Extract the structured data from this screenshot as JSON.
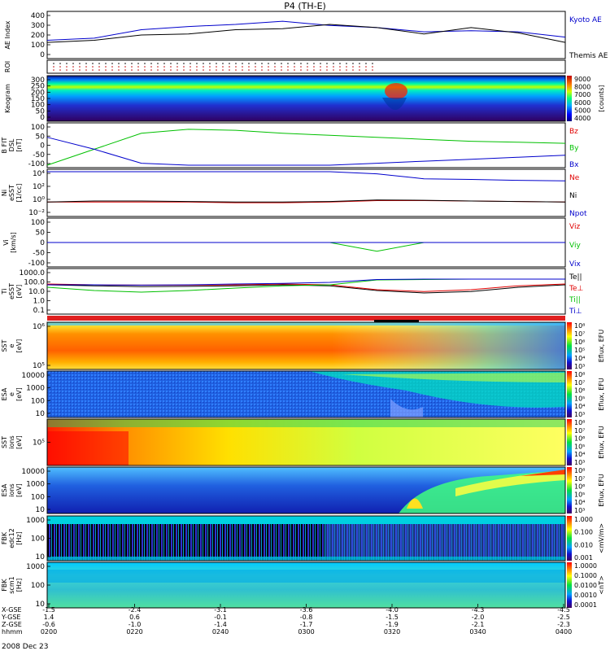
{
  "title": "P4 (TH-E)",
  "date_label": "2008 Dec 23",
  "x_axis": {
    "row_labels": [
      "X-GSE",
      "Y-GSE",
      "Z-GSE",
      "hhmm"
    ],
    "ticks": [
      {
        "x": "-1.5",
        "y": "1.4",
        "z": "-0.6",
        "t": "0200"
      },
      {
        "x": "-2.4",
        "y": "0.6",
        "z": "-1.0",
        "t": "0220"
      },
      {
        "x": "-3.1",
        "y": "-0.1",
        "z": "-1.4",
        "t": "0240"
      },
      {
        "x": "-3.6",
        "y": "-0.8",
        "z": "-1.7",
        "t": "0300"
      },
      {
        "x": "-4.0",
        "y": "-1.5",
        "z": "-1.9",
        "t": "0320"
      },
      {
        "x": "-4.3",
        "y": "-2.0",
        "z": "-2.1",
        "t": "0340"
      },
      {
        "x": "-4.5",
        "y": "-2.5",
        "z": "-2.3",
        "t": "0400"
      }
    ]
  },
  "colors": {
    "red": "#e00000",
    "green": "#00c000",
    "blue": "#0000cc",
    "black": "#000000"
  },
  "panels": [
    {
      "id": "ae",
      "ylabel": [
        "AE Index"
      ],
      "yticks": [
        "400",
        "300",
        "200",
        "100",
        "0"
      ],
      "legend": [
        {
          "text": "Kyoto AE",
          "color": "#0000cc"
        },
        {
          "text": "Themis AE",
          "color": "#000000"
        }
      ]
    },
    {
      "id": "roi",
      "ylabel": [
        "ROI"
      ],
      "yticks": [],
      "legend": []
    },
    {
      "id": "keogram",
      "ylabel": [
        "Keogram"
      ],
      "yticks": [
        "300",
        "250",
        "200",
        "150",
        "100",
        "50",
        "0"
      ],
      "colorbar": {
        "ticks": [
          "9000",
          "8000",
          "7000",
          "6000",
          "5000",
          "4000"
        ],
        "label": "[counts]"
      }
    },
    {
      "id": "bfit",
      "ylabel": [
        "B FIT",
        "DSL",
        "[nT]"
      ],
      "yticks": [
        "100",
        "50",
        "0",
        "-50",
        "-100"
      ],
      "legend": [
        {
          "text": "Bz",
          "color": "#e00000"
        },
        {
          "text": "By",
          "color": "#00c000"
        },
        {
          "text": "Bx",
          "color": "#0000cc"
        }
      ]
    },
    {
      "id": "ni",
      "ylabel": [
        "Ni",
        "eSST",
        "[1/cc]"
      ],
      "yticks": [
        "10⁴",
        "10²",
        "10⁰",
        "10⁻²"
      ],
      "legend": [
        {
          "text": "Ne",
          "color": "#e00000"
        },
        {
          "text": "Ni",
          "color": "#000000"
        },
        {
          "text": "Npot",
          "color": "#0000cc"
        }
      ]
    },
    {
      "id": "vi",
      "ylabel": [
        "Vi",
        "[km/s]"
      ],
      "yticks": [
        "100",
        "50",
        "0",
        "-50",
        "-100"
      ],
      "legend": [
        {
          "text": "Viz",
          "color": "#e00000"
        },
        {
          "text": "Viy",
          "color": "#00c000"
        },
        {
          "text": "Vix",
          "color": "#0000cc"
        }
      ]
    },
    {
      "id": "ti",
      "ylabel": [
        "Ti",
        "eSST",
        "[eV]"
      ],
      "yticks": [
        "1000.0",
        "100.0",
        "10.0",
        "1.0",
        "0.1"
      ],
      "legend": [
        {
          "text": "Te||",
          "color": "#000000"
        },
        {
          "text": "Te⊥",
          "color": "#e00000"
        },
        {
          "text": "Ti||",
          "color": "#00c000"
        },
        {
          "text": "Ti⊥",
          "color": "#0000cc"
        }
      ]
    },
    {
      "id": "sst_e",
      "ylabel": [
        "SST",
        "e",
        "[eV]"
      ],
      "yticks": [
        "10⁶",
        "10⁵"
      ],
      "colorbar": {
        "ticks": [
          "10⁸",
          "10⁷",
          "10⁶",
          "10⁵",
          "10⁴",
          "10³"
        ],
        "label": "Eflux, EFU"
      }
    },
    {
      "id": "esa_e",
      "ylabel": [
        "ESA",
        "e",
        "[eV]"
      ],
      "yticks": [
        "10000",
        "1000",
        "100",
        "10"
      ],
      "colorbar": {
        "ticks": [
          "10⁸",
          "10⁷",
          "10⁶",
          "10⁵",
          "10⁴",
          "10³"
        ],
        "label": "Eflux, EFU"
      }
    },
    {
      "id": "sst_i",
      "ylabel": [
        "SST",
        "ions",
        "[eV]"
      ],
      "yticks": [
        "10⁵"
      ],
      "colorbar": {
        "ticks": [
          "10⁸",
          "10⁷",
          "10⁶",
          "10⁵",
          "10⁴",
          "10³"
        ],
        "label": "Eflux, EFU"
      }
    },
    {
      "id": "esa_i",
      "ylabel": [
        "ESA",
        "ions",
        "[eV]"
      ],
      "yticks": [
        "10000",
        "1000",
        "100",
        "10"
      ],
      "colorbar": {
        "ticks": [
          "10⁸",
          "10⁷",
          "10⁶",
          "10⁵",
          "10⁴",
          "10³"
        ],
        "label": "Eflux, EFU"
      }
    },
    {
      "id": "fbk_e",
      "ylabel": [
        "FBK",
        "edc12",
        "[Hz]"
      ],
      "yticks": [
        "1000",
        "100",
        "10"
      ],
      "colorbar": {
        "ticks": [
          "1.000",
          "0.100",
          "0.010",
          "0.001"
        ],
        "label": "<mV/m>"
      }
    },
    {
      "id": "fbk_b",
      "ylabel": [
        "FBK",
        "scm1",
        "[Hz]"
      ],
      "yticks": [
        "1000",
        "100",
        "10"
      ],
      "colorbar": {
        "ticks": [
          "1.0000",
          "0.1000",
          "0.0100",
          "0.0010",
          "0.0001"
        ],
        "label": "<nT>"
      }
    }
  ],
  "chart_data": {
    "type": "line",
    "title": "P4 (TH-E)",
    "x_time_hhmm": [
      "0200",
      "0220",
      "0240",
      "0300",
      "0320",
      "0340",
      "0400"
    ],
    "ae_index": {
      "ylim": [
        0,
        400
      ],
      "series": [
        {
          "name": "Kyoto AE",
          "color": "#0000cc",
          "values": [
            150,
            170,
            250,
            280,
            300,
            330,
            290,
            270,
            230,
            240,
            230,
            180
          ]
        },
        {
          "name": "Themis AE",
          "color": "#000000",
          "values": [
            130,
            150,
            200,
            210,
            250,
            260,
            300,
            270,
            210,
            270,
            220,
            130
          ]
        }
      ]
    },
    "b_fit_nT": {
      "ylim": [
        -100,
        100
      ],
      "series": [
        {
          "name": "Bz",
          "color": "#e00000",
          "values": []
        },
        {
          "name": "By",
          "color": "#00c000",
          "values": [
            -100,
            -20,
            60,
            80,
            75,
            60,
            50,
            40,
            30,
            20,
            15,
            10
          ]
        },
        {
          "name": "Bx",
          "color": "#0000cc",
          "values": [
            40,
            -20,
            -90,
            -100,
            -100,
            -100,
            -100,
            -90,
            -80,
            -70,
            -60,
            -50
          ]
        }
      ]
    },
    "densities_cc": {
      "ylim_log": [
        -2,
        4
      ],
      "series": [
        {
          "name": "Ne",
          "color": "#e00000",
          "values": [
            0.5,
            0.5,
            0.5,
            0.5,
            0.4,
            0.4,
            0.5,
            0.8,
            0.8,
            0.7,
            0.6,
            0.5
          ]
        },
        {
          "name": "Ni",
          "color": "#000000",
          "values": [
            0.5,
            0.7,
            0.7,
            0.6,
            0.5,
            0.5,
            0.6,
            1.0,
            0.9,
            0.7,
            0.6,
            0.5
          ]
        },
        {
          "name": "Npot",
          "color": "#0000cc",
          "values": [
            20000,
            18000,
            15000,
            13000,
            12000,
            11000,
            10000,
            5000,
            1000,
            800,
            600,
            500
          ]
        }
      ]
    },
    "velocity_kms": {
      "ylim": [
        -100,
        100
      ],
      "series": [
        {
          "name": "Viz",
          "color": "#e00000",
          "values": [
            0,
            0,
            0,
            0,
            0,
            0,
            0,
            0,
            0,
            0,
            0,
            0
          ]
        },
        {
          "name": "Viy",
          "color": "#00c000",
          "values": [
            0,
            0,
            0,
            0,
            0,
            0,
            0,
            -40,
            0,
            0,
            0,
            0
          ]
        },
        {
          "name": "Vix",
          "color": "#0000cc",
          "values": [
            0,
            0,
            0,
            0,
            0,
            0,
            0,
            0,
            0,
            0,
            0,
            0
          ]
        }
      ]
    },
    "temperatures_eV": {
      "ylim_log": [
        -1,
        4
      ],
      "series": [
        {
          "name": "Te||",
          "color": "#000000",
          "values": [
            200,
            150,
            120,
            130,
            150,
            200,
            150,
            40,
            20,
            30,
            100,
            200
          ]
        },
        {
          "name": "Te⊥",
          "color": "#e00000",
          "values": [
            250,
            200,
            180,
            180,
            200,
            250,
            200,
            50,
            30,
            50,
            150,
            250
          ]
        },
        {
          "name": "Ti||",
          "color": "#00c000",
          "values": [
            100,
            40,
            25,
            40,
            80,
            150,
            200,
            800,
            900,
            1000,
            1000,
            1000
          ]
        },
        {
          "name": "Ti⊥",
          "color": "#0000cc",
          "values": [
            200,
            200,
            180,
            200,
            250,
            300,
            400,
            900,
            1000,
            1000,
            1000,
            1000
          ]
        }
      ]
    }
  }
}
